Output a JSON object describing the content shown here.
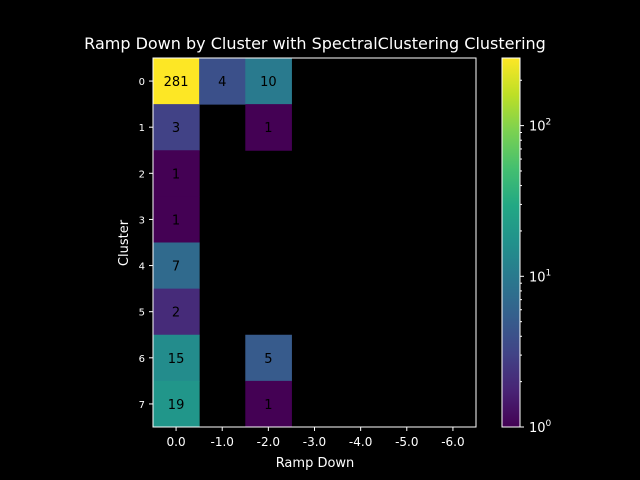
{
  "chart_data": {
    "type": "heatmap",
    "title": "Ramp Down by Cluster with SpectralClustering Clustering",
    "xlabel": "Ramp Down",
    "ylabel": "Cluster",
    "x_categories": [
      "0.0",
      "-1.0",
      "-2.0",
      "-3.0",
      "-4.0",
      "-5.0",
      "-6.0"
    ],
    "y_categories": [
      "0",
      "1",
      "2",
      "3",
      "4",
      "5",
      "6",
      "7"
    ],
    "values": [
      [
        281,
        4,
        10,
        null,
        null,
        null,
        null
      ],
      [
        3,
        null,
        1,
        null,
        null,
        null,
        null
      ],
      [
        1,
        null,
        null,
        null,
        null,
        null,
        null
      ],
      [
        1,
        null,
        null,
        null,
        null,
        null,
        null
      ],
      [
        7,
        null,
        null,
        null,
        null,
        null,
        null
      ],
      [
        2,
        null,
        null,
        null,
        null,
        null,
        null
      ],
      [
        15,
        null,
        5,
        null,
        null,
        null,
        null
      ],
      [
        19,
        null,
        1,
        null,
        null,
        null,
        null
      ]
    ],
    "colorscale": "viridis",
    "color_scale_type": "log",
    "color_range": [
      1,
      281
    ],
    "colorbar_ticks": [
      {
        "value": 1,
        "base": "10",
        "exp": "0"
      },
      {
        "value": 10,
        "base": "10",
        "exp": "1"
      },
      {
        "value": 100,
        "base": "10",
        "exp": "2"
      }
    ],
    "background_color": "#000000",
    "grid": false
  }
}
